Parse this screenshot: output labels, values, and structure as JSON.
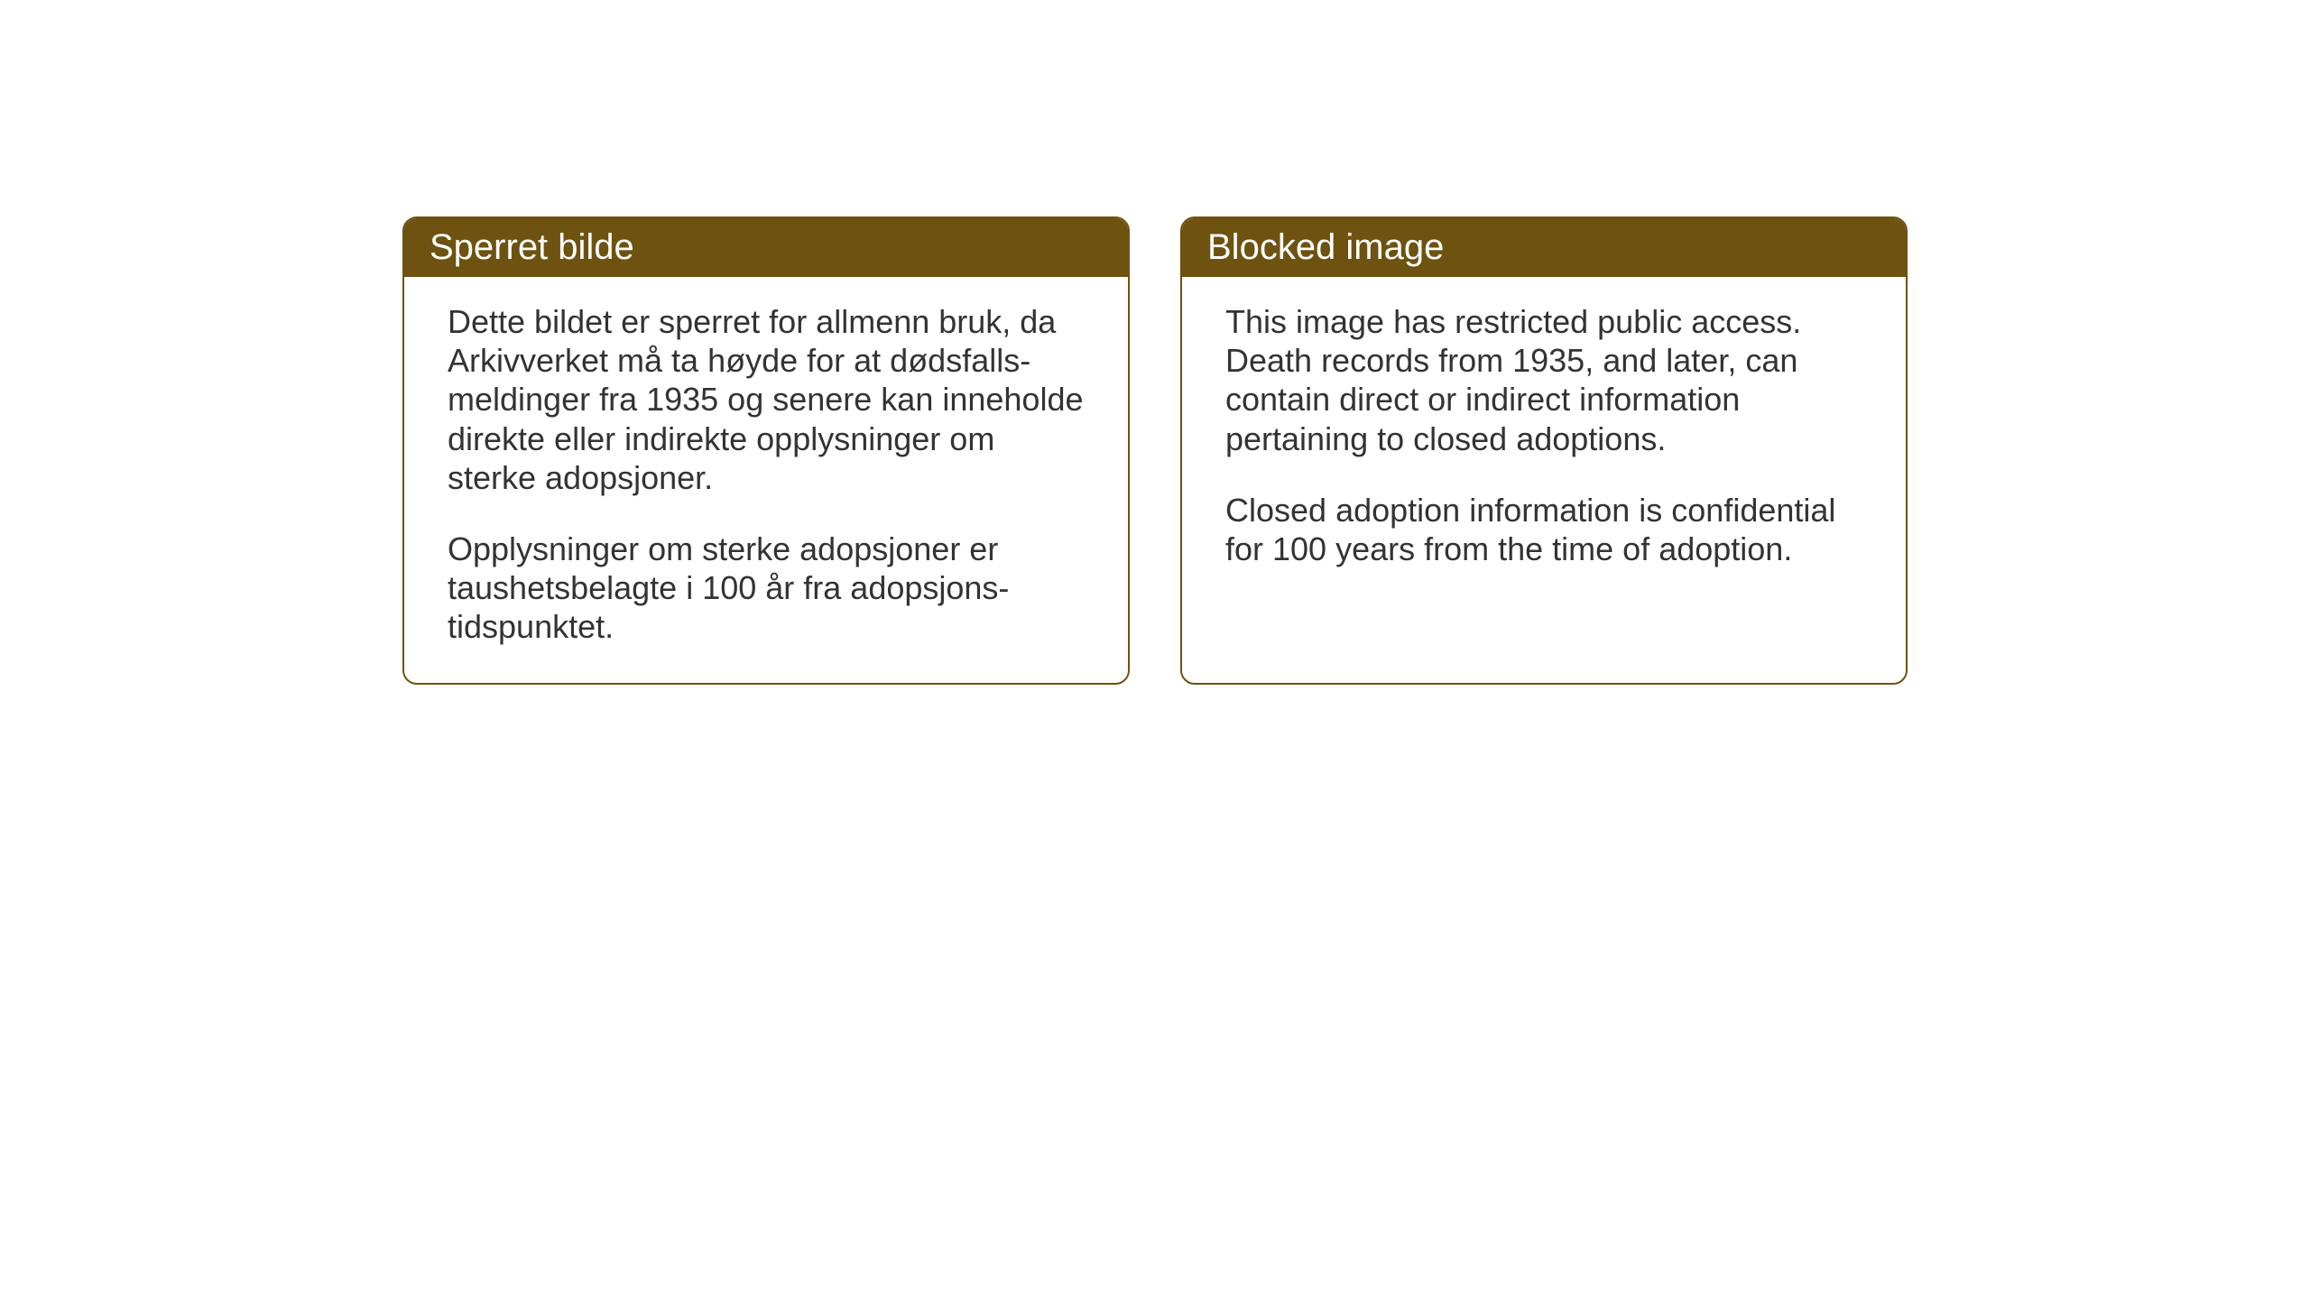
{
  "cards": {
    "norwegian": {
      "title": "Sperret bilde",
      "paragraph1": "Dette bildet er sperret for allmenn bruk, da Arkivverket må ta høyde for at dødsfalls-meldinger fra 1935 og senere kan inneholde direkte eller indirekte opplysninger om sterke adopsjoner.",
      "paragraph2": "Opplysninger om sterke adopsjoner er taushetsbelagte i 100 år fra adopsjons-tidspunktet."
    },
    "english": {
      "title": "Blocked image",
      "paragraph1": "This image has restricted public access. Death records from 1935, and later, can contain direct or indirect information pertaining to closed adoptions.",
      "paragraph2": "Closed adoption information is confidential for 100 years from the time of adoption."
    }
  },
  "styling": {
    "header_background_color": "#6e520f",
    "header_text_color": "#ffffff",
    "border_color": "#6e520f",
    "card_background_color": "#ffffff",
    "body_text_color": "#333333",
    "page_background_color": "#ffffff",
    "header_fontsize": 40,
    "body_fontsize": 36,
    "border_radius": 16,
    "border_width": 2
  }
}
